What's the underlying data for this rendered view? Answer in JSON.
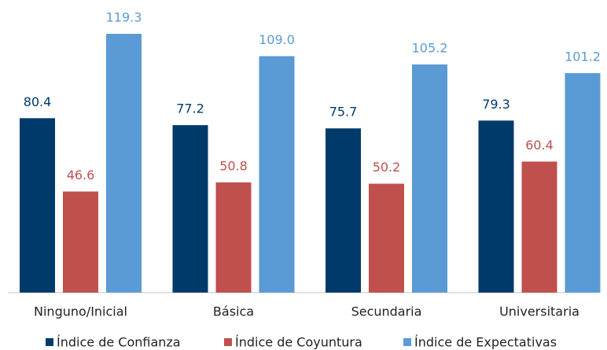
{
  "chart_data": {
    "type": "bar",
    "categories": [
      "Ninguno/Inicial",
      "Básica",
      "Secundaria",
      "Universitaria"
    ],
    "series": [
      {
        "name": "Índice de Confianza",
        "color": "#003a6b",
        "values": [
          80.4,
          77.2,
          75.7,
          79.3
        ]
      },
      {
        "name": "Índice de Coyuntura",
        "color": "#c0504d",
        "values": [
          46.6,
          50.8,
          50.2,
          60.4
        ]
      },
      {
        "name": "Índice de Expectativas",
        "color": "#5b9bd5",
        "values": [
          119.3,
          109.0,
          105.2,
          101.2
        ],
        "value_labels": [
          "119.3",
          "109.0",
          "105.2",
          "101.2"
        ]
      }
    ],
    "legend": "bottom"
  }
}
